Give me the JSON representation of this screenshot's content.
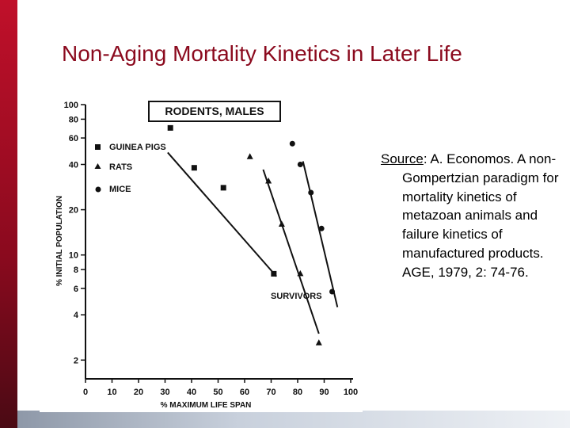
{
  "slide": {
    "title": "Non-Aging Mortality Kinetics in Later Life",
    "source_label": "Source",
    "source_text": ": A. Economos. A non-Gompertzian paradigm for mortality kinetics of metazoan animals and failure kinetics of manufactured products. AGE, 1979, 2: 74-76."
  },
  "colors": {
    "title": "#8b0a1e",
    "left_band": "#a00c24",
    "plot_ink": "#111111"
  },
  "chart_data": {
    "type": "scatter",
    "title": "RODENTS, MALES",
    "xlabel": "% MAXIMUM LIFE SPAN",
    "ylabel": "% INITIAL POPULATION",
    "xlim": [
      0,
      100
    ],
    "ylim": [
      1.5,
      100
    ],
    "yscale": "log",
    "xticks": [
      0,
      10,
      20,
      30,
      40,
      50,
      60,
      70,
      80,
      90,
      100
    ],
    "yticks": [
      2,
      4,
      6,
      8,
      10,
      20,
      40,
      60,
      80,
      100
    ],
    "annotation": "SURVIVORS",
    "series": [
      {
        "name": "GUINEA PIGS",
        "marker": "square",
        "points": [
          [
            32,
            70
          ],
          [
            41,
            38
          ],
          [
            52,
            28
          ],
          [
            71,
            7.5
          ]
        ],
        "fit": [
          [
            31,
            48
          ],
          [
            72,
            7.2
          ]
        ]
      },
      {
        "name": "RATS",
        "marker": "triangle",
        "points": [
          [
            62,
            45
          ],
          [
            69,
            31
          ],
          [
            74,
            16
          ],
          [
            81,
            7.5
          ],
          [
            88,
            2.6
          ]
        ],
        "fit": [
          [
            67,
            37
          ],
          [
            88,
            3.0
          ]
        ]
      },
      {
        "name": "MICE",
        "marker": "circle",
        "points": [
          [
            78,
            55
          ],
          [
            81,
            40
          ],
          [
            85,
            26
          ],
          [
            89,
            15
          ],
          [
            93,
            5.7
          ]
        ],
        "fit": [
          [
            82,
            42
          ],
          [
            95,
            4.5
          ]
        ]
      }
    ]
  }
}
